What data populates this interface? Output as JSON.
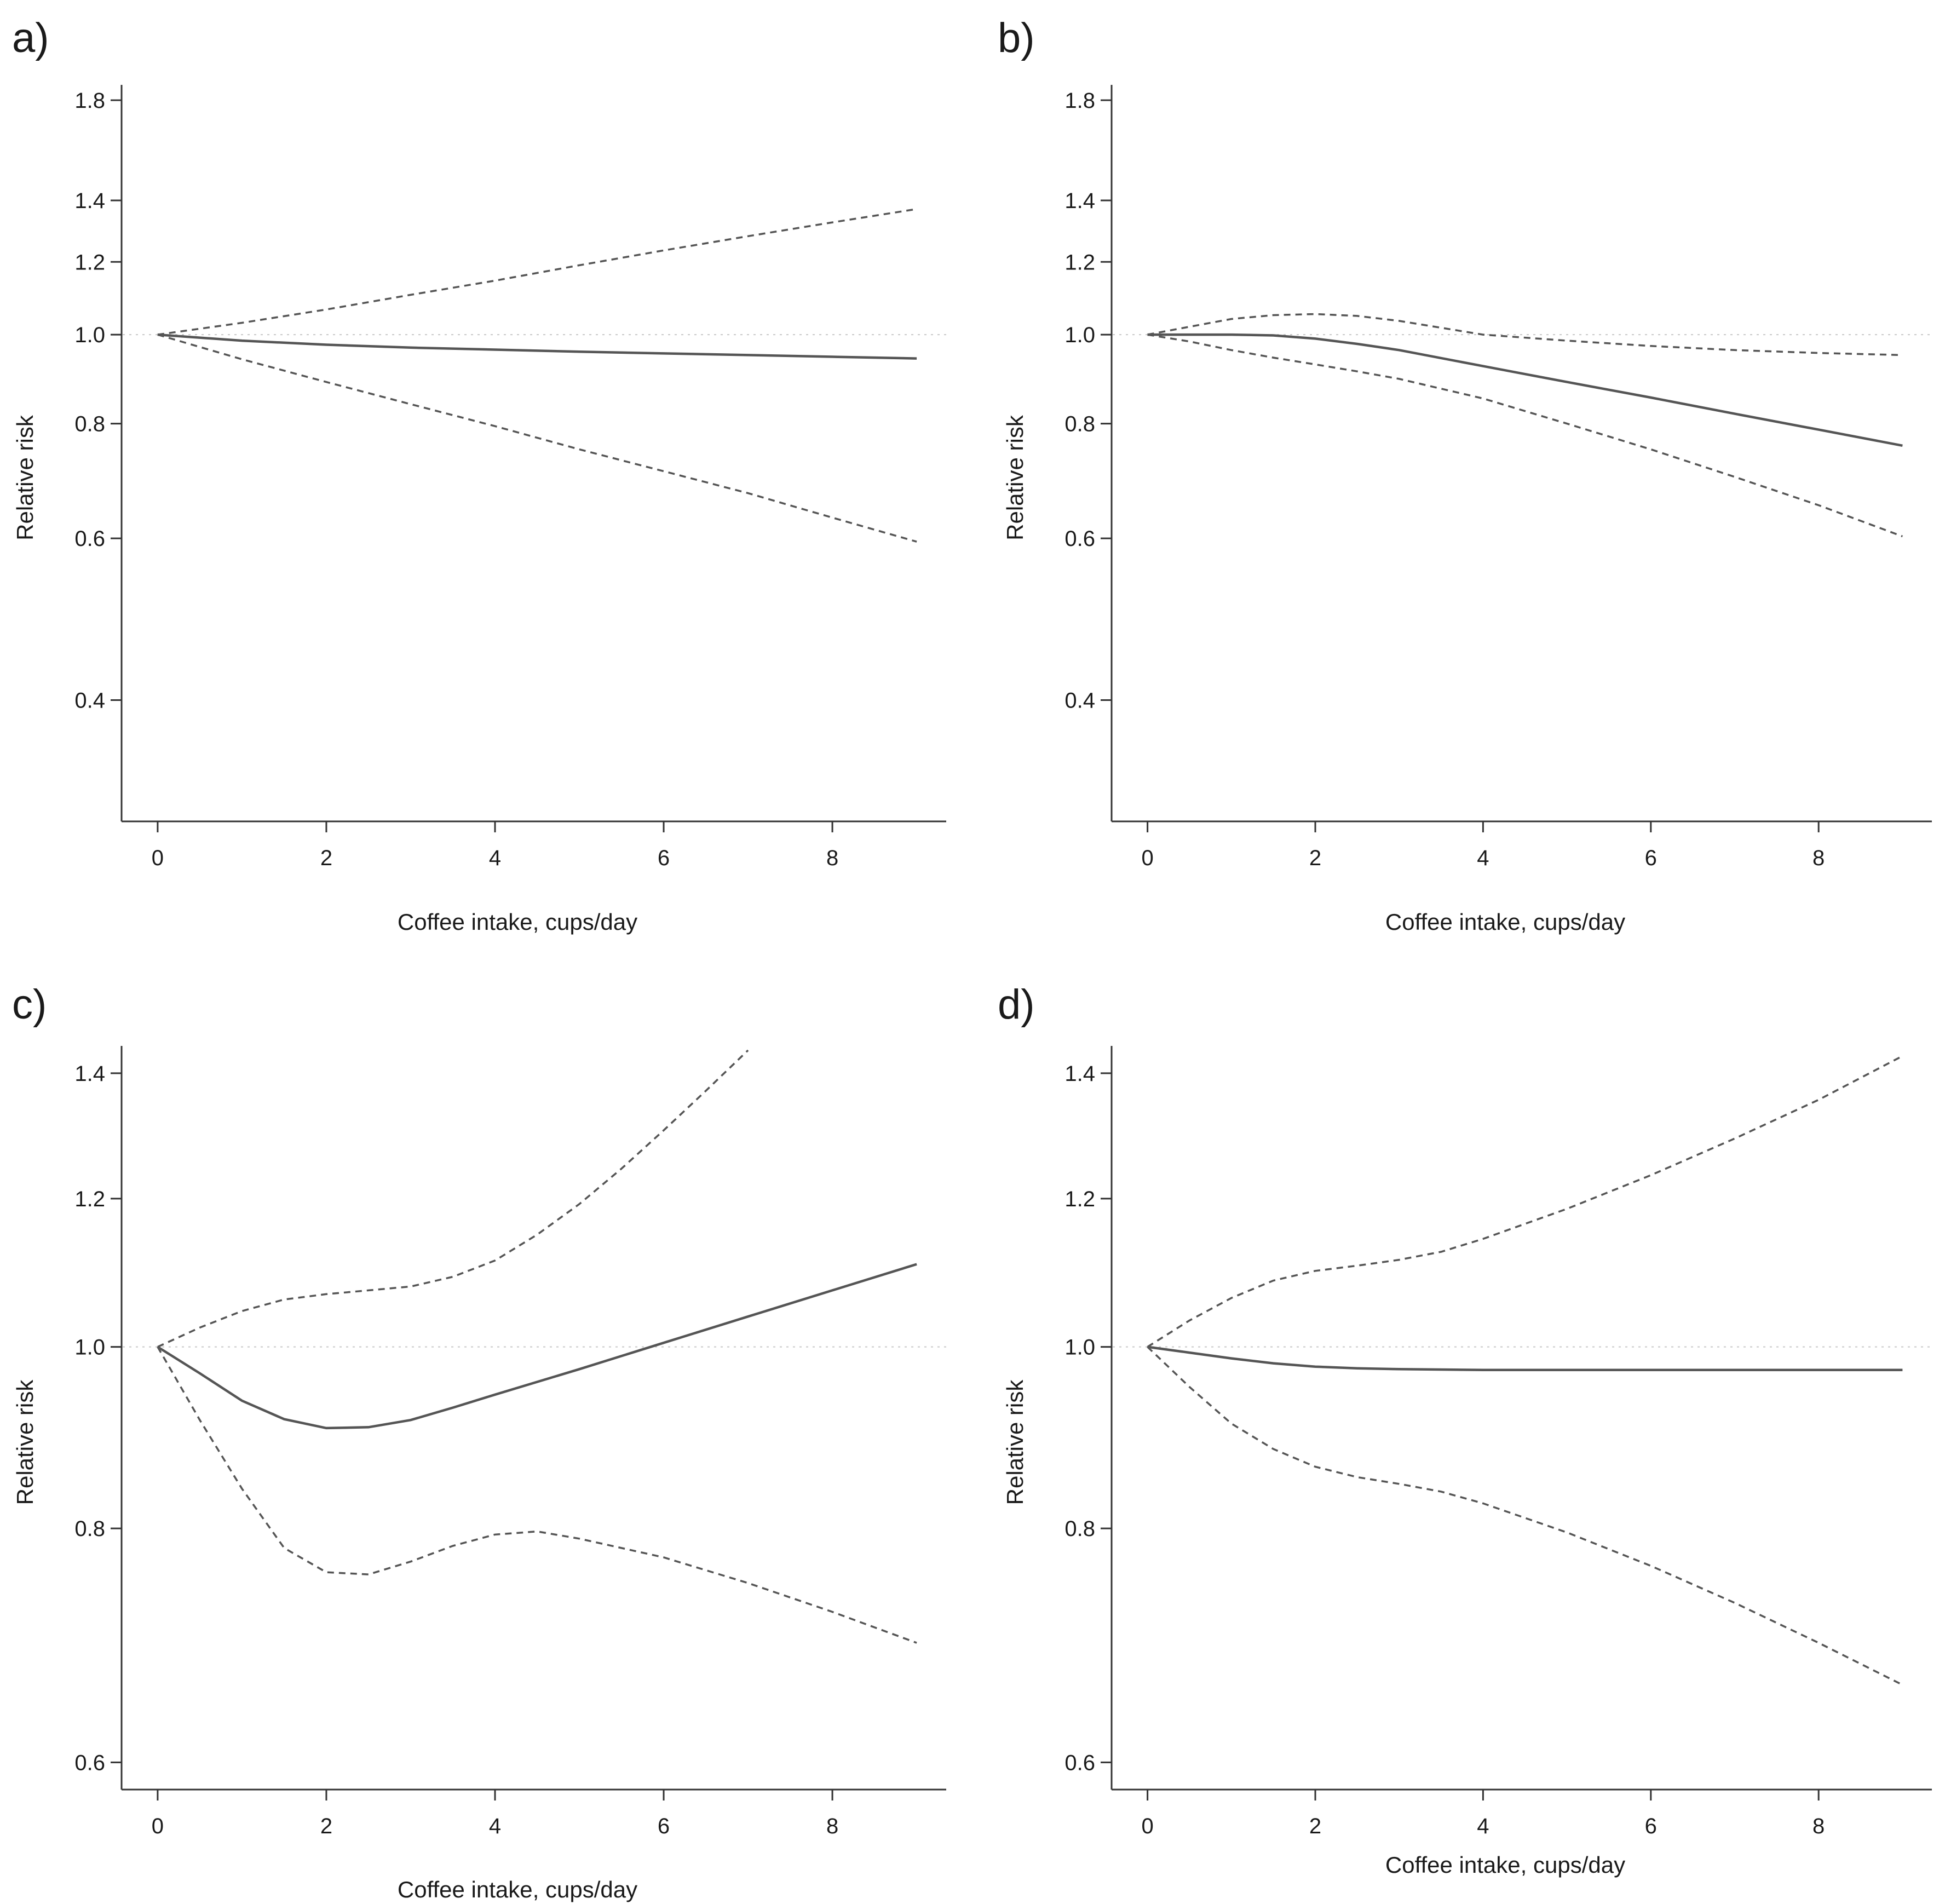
{
  "chart_data": [
    {
      "type": "line",
      "panel_label": "a)",
      "xlabel": "Coffee intake, cups/day",
      "ylabel": "Relative risk",
      "y_scale": "log",
      "xlim": [
        -0.35,
        9.35
      ],
      "ylim": [
        0.3,
        1.85
      ],
      "x_ticks": [
        0,
        2,
        4,
        6,
        8
      ],
      "y_ticks": [
        0.4,
        0.6,
        0.8,
        1.0,
        1.2,
        1.4,
        1.8
      ],
      "reference_line": 1.0,
      "series": [
        {
          "name": "estimate",
          "style": "solid",
          "x": [
            0,
            1,
            2,
            3,
            4,
            5,
            6,
            7,
            8,
            9
          ],
          "values": [
            1.0,
            0.985,
            0.975,
            0.968,
            0.963,
            0.958,
            0.954,
            0.95,
            0.946,
            0.942
          ]
        },
        {
          "name": "upper 95% CI",
          "style": "dashed",
          "x": [
            0,
            1,
            2,
            3,
            4,
            5,
            6,
            7,
            8,
            9
          ],
          "values": [
            1.0,
            1.03,
            1.065,
            1.105,
            1.145,
            1.19,
            1.235,
            1.28,
            1.325,
            1.37
          ]
        },
        {
          "name": "lower 95% CI",
          "style": "dashed",
          "x": [
            0,
            1,
            2,
            3,
            4,
            5,
            6,
            7,
            8,
            9
          ],
          "values": [
            1.0,
            0.94,
            0.888,
            0.84,
            0.795,
            0.75,
            0.71,
            0.672,
            0.632,
            0.595
          ]
        }
      ]
    },
    {
      "type": "line",
      "panel_label": "b)",
      "xlabel": "Coffee intake, cups/day",
      "ylabel": "Relative risk",
      "y_scale": "log",
      "xlim": [
        -0.35,
        9.35
      ],
      "ylim": [
        0.3,
        1.85
      ],
      "x_ticks": [
        0,
        2,
        4,
        6,
        8
      ],
      "y_ticks": [
        0.4,
        0.6,
        0.8,
        1.0,
        1.2,
        1.4,
        1.8
      ],
      "reference_line": 1.0,
      "series": [
        {
          "name": "estimate",
          "style": "solid",
          "x": [
            0,
            0.5,
            1,
            1.5,
            2,
            2.5,
            3,
            4,
            5,
            6,
            7,
            8,
            9
          ],
          "values": [
            1.0,
            1.0,
            1.0,
            0.998,
            0.99,
            0.977,
            0.962,
            0.924,
            0.888,
            0.854,
            0.82,
            0.788,
            0.757
          ]
        },
        {
          "name": "upper 95% CI",
          "style": "dashed",
          "x": [
            0,
            0.5,
            1,
            1.5,
            2,
            2.5,
            3,
            4,
            5,
            6,
            7,
            8,
            9
          ],
          "values": [
            1.0,
            1.02,
            1.04,
            1.05,
            1.053,
            1.048,
            1.035,
            1.0,
            0.985,
            0.972,
            0.962,
            0.955,
            0.95
          ]
        },
        {
          "name": "lower 95% CI",
          "style": "dashed",
          "x": [
            0,
            0.5,
            1,
            1.5,
            2,
            2.5,
            3,
            4,
            5,
            6,
            7,
            8,
            9
          ],
          "values": [
            1.0,
            0.983,
            0.962,
            0.944,
            0.928,
            0.912,
            0.895,
            0.852,
            0.8,
            0.75,
            0.7,
            0.652,
            0.603
          ]
        }
      ]
    },
    {
      "type": "line",
      "panel_label": "c)",
      "xlabel": "Coffee intake, cups/day",
      "ylabel": "Relative risk",
      "y_scale": "log",
      "xlim": [
        -0.35,
        9.35
      ],
      "ylim": [
        0.585,
        1.44
      ],
      "x_ticks": [
        0,
        2,
        4,
        6,
        8
      ],
      "y_ticks": [
        0.6,
        0.8,
        1.0,
        1.2,
        1.4
      ],
      "reference_line": 1.0,
      "series": [
        {
          "name": "estimate",
          "style": "solid",
          "x": [
            0,
            0.5,
            1,
            1.5,
            2,
            2.5,
            3,
            3.5,
            4,
            5,
            6,
            7,
            8,
            9
          ],
          "values": [
            1.0,
            0.968,
            0.936,
            0.915,
            0.905,
            0.906,
            0.914,
            0.928,
            0.943,
            0.973,
            1.005,
            1.038,
            1.072,
            1.107
          ]
        },
        {
          "name": "upper 95% CI",
          "style": "dashed",
          "x": [
            0,
            0.5,
            1,
            1.5,
            2,
            2.5,
            3,
            3.5,
            4,
            4.5,
            5,
            5.5,
            6,
            6.5,
            7
          ],
          "values": [
            1.0,
            1.024,
            1.045,
            1.06,
            1.067,
            1.072,
            1.077,
            1.09,
            1.112,
            1.148,
            1.192,
            1.245,
            1.305,
            1.37,
            1.44
          ]
        },
        {
          "name": "lower 95% CI",
          "style": "dashed",
          "x": [
            0,
            0.5,
            1,
            1.5,
            2,
            2.5,
            3,
            3.5,
            4,
            4.5,
            5,
            6,
            7,
            8,
            9
          ],
          "values": [
            1.0,
            0.914,
            0.84,
            0.781,
            0.758,
            0.756,
            0.768,
            0.783,
            0.794,
            0.797,
            0.79,
            0.772,
            0.748,
            0.722,
            0.695
          ]
        }
      ]
    },
    {
      "type": "line",
      "panel_label": "d)",
      "xlabel": "Coffee intake, cups/day",
      "ylabel": "Relative risk",
      "y_scale": "log",
      "xlim": [
        -0.35,
        9.35
      ],
      "ylim": [
        0.585,
        1.44
      ],
      "x_ticks": [
        0,
        2,
        4,
        6,
        8
      ],
      "y_ticks": [
        0.6,
        0.8,
        1.0,
        1.2,
        1.4
      ],
      "reference_line": 1.0,
      "series": [
        {
          "name": "estimate",
          "style": "solid",
          "x": [
            0,
            0.5,
            1,
            1.5,
            2,
            2.5,
            3,
            4,
            5,
            6,
            7,
            8,
            9
          ],
          "values": [
            1.0,
            0.993,
            0.986,
            0.98,
            0.976,
            0.974,
            0.973,
            0.972,
            0.972,
            0.972,
            0.972,
            0.972,
            0.972
          ]
        },
        {
          "name": "upper 95% CI",
          "style": "dashed",
          "x": [
            0,
            0.5,
            1,
            1.5,
            2,
            2.5,
            3,
            3.5,
            4,
            5,
            6,
            7,
            8,
            9
          ],
          "values": [
            1.0,
            1.033,
            1.062,
            1.085,
            1.098,
            1.105,
            1.113,
            1.124,
            1.142,
            1.185,
            1.235,
            1.292,
            1.355,
            1.43
          ]
        },
        {
          "name": "lower 95% CI",
          "style": "dashed",
          "x": [
            0,
            0.5,
            1,
            1.5,
            2,
            2.5,
            3,
            3.5,
            4,
            5,
            6,
            7,
            8,
            9
          ],
          "values": [
            1.0,
            0.952,
            0.91,
            0.882,
            0.863,
            0.852,
            0.845,
            0.837,
            0.825,
            0.796,
            0.764,
            0.73,
            0.695,
            0.66
          ]
        }
      ]
    }
  ]
}
